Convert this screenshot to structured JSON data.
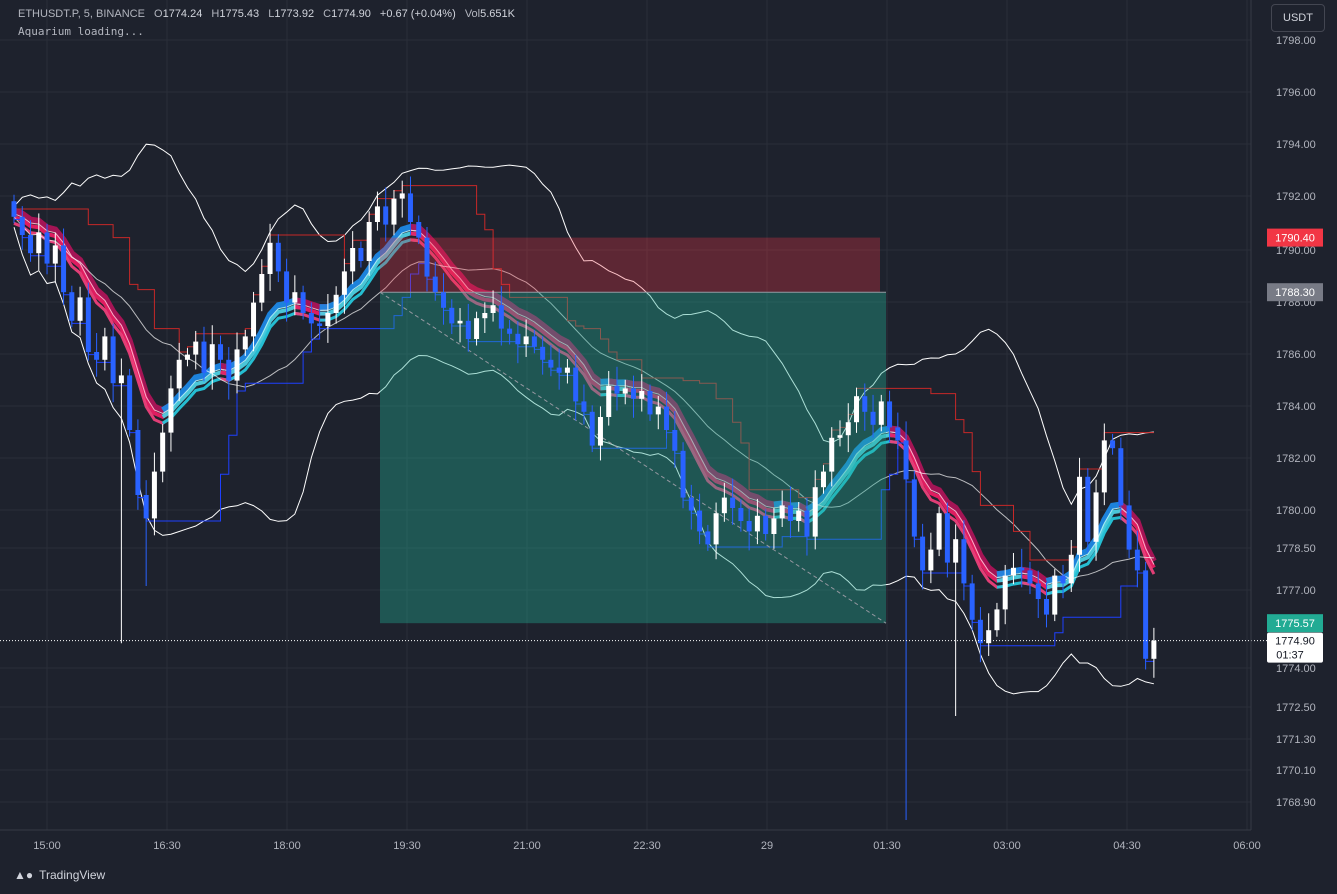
{
  "header": {
    "symbol": "ETHUSDT.P, 5, BINANCE",
    "o_label": "O",
    "o_value": "1774.24",
    "h_label": "H",
    "h_value": "1775.43",
    "l_label": "L",
    "l_value": "1773.92",
    "c_label": "C",
    "c_value": "1774.90",
    "change": "+0.67 (+0.04%)",
    "vol_label": "Vol",
    "vol_value": "5.651K",
    "indicator": "Aquarium loading..."
  },
  "currency_button": "USDT",
  "branding": "TradingView",
  "colors": {
    "background": "#1e222d",
    "bull": "#ffffff",
    "bear": "#2962ff",
    "pink_band": "#e91e63",
    "cyan_band": "#26c6da",
    "channel": "#ffffff",
    "stop_zone": "#f23645",
    "target_zone": "#22ab94"
  },
  "chart_data": {
    "type": "candlestick",
    "price_axis_labels": [
      "1798.00",
      "1796.00",
      "1794.00",
      "1792.00",
      "1790.00",
      "1788.00",
      "1786.00",
      "1784.00",
      "1782.00",
      "1780.00",
      "1778.50",
      "1777.00",
      "1774.00",
      "1772.50",
      "1771.30",
      "1770.10",
      "1768.90"
    ],
    "time_axis_labels": [
      "15:00",
      "16:30",
      "18:00",
      "19:30",
      "21:00",
      "22:30",
      "29",
      "01:30",
      "03:00",
      "04:30",
      "06:00"
    ],
    "price_tags": [
      {
        "value": "1790.40",
        "color": "#f23645"
      },
      {
        "value": "1788.30",
        "color": "#787b86"
      },
      {
        "value": "1775.57",
        "color": "#22ab94"
      }
    ],
    "last_price": {
      "value": "1774.90",
      "countdown": "01:37"
    },
    "short_position": {
      "entry": 1788.3,
      "stop": 1790.4,
      "target": 1775.57,
      "start": "19:15",
      "end": "01:30"
    },
    "close_series": [
      1791.2,
      1790.5,
      1789.8,
      1790.6,
      1789.4,
      1790.1,
      1788.3,
      1787.2,
      1788.1,
      1786.0,
      1785.7,
      1786.6,
      1784.8,
      1785.1,
      1783.0,
      1780.5,
      1779.6,
      1781.4,
      1782.9,
      1784.6,
      1785.7,
      1785.9,
      1786.4,
      1785.2,
      1786.3,
      1785.7,
      1784.9,
      1786.1,
      1786.6,
      1787.9,
      1789.0,
      1790.2,
      1789.1,
      1787.9,
      1788.3,
      1787.5,
      1787.1,
      1787.0,
      1787.5,
      1788.2,
      1789.1,
      1790.0,
      1789.5,
      1791.0,
      1791.6,
      1790.9,
      1791.9,
      1792.1,
      1791.0,
      1790.4,
      1788.9,
      1788.3,
      1787.7,
      1787.1,
      1787.2,
      1786.5,
      1787.3,
      1787.5,
      1787.8,
      1786.9,
      1786.7,
      1786.3,
      1786.6,
      1786.2,
      1785.7,
      1785.4,
      1785.2,
      1785.4,
      1784.1,
      1783.7,
      1782.4,
      1783.5,
      1784.7,
      1784.4,
      1784.6,
      1784.2,
      1784.5,
      1783.6,
      1783.9,
      1783.0,
      1782.2,
      1780.4,
      1779.9,
      1779.1,
      1778.6,
      1779.8,
      1780.4,
      1780.0,
      1779.5,
      1779.1,
      1779.7,
      1779.0,
      1779.6,
      1780.1,
      1779.5,
      1779.9,
      1778.9,
      1780.8,
      1781.4,
      1782.7,
      1782.8,
      1783.3,
      1784.3,
      1783.7,
      1783.2,
      1784.1,
      1783.1,
      1782.6,
      1781.1,
      1778.9,
      1777.6,
      1778.4,
      1779.8,
      1777.9,
      1778.8,
      1777.1,
      1775.7,
      1774.8,
      1775.3,
      1776.1,
      1777.4,
      1777.7,
      1777.6,
      1777.1,
      1776.5,
      1775.9,
      1777.4,
      1777.1,
      1778.2,
      1781.2,
      1778.7,
      1780.6,
      1782.6,
      1782.3,
      1780.1,
      1778.4,
      1777.6,
      1774.2,
      1774.9
    ]
  }
}
